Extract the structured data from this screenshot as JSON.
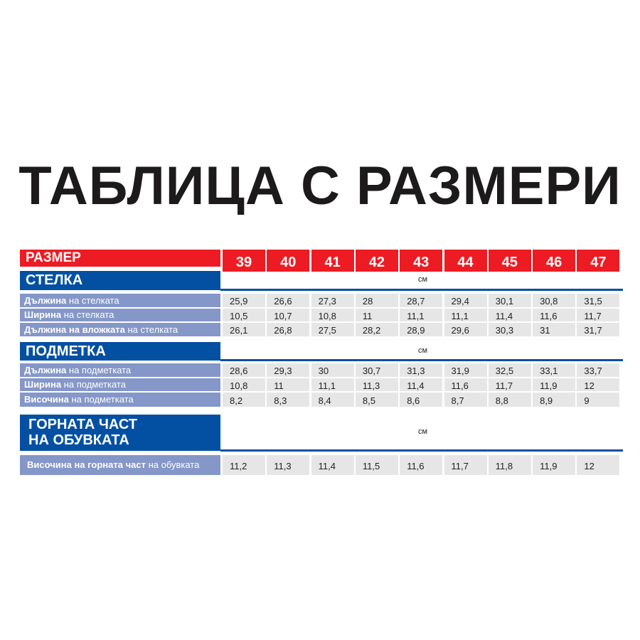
{
  "title": "ТАБЛИЦА С РАЗМЕРИ",
  "size_label": "РАЗМЕР",
  "sizes": [
    "39",
    "40",
    "41",
    "42",
    "43",
    "44",
    "45",
    "46",
    "47"
  ],
  "colors": {
    "red": "#ed1c24",
    "blue": "#0350a3",
    "label_bg": "#8597c8",
    "cell_bg": "#e6e6e6"
  },
  "sections": [
    {
      "title_lines": [
        "СТЕЛКА"
      ],
      "unit": "см",
      "rows": [
        {
          "bold": "Дължина",
          "rest": " на стелката",
          "values": [
            "25,9",
            "26,6",
            "27,3",
            "28",
            "28,7",
            "29,4",
            "30,1",
            "30,8",
            "31,5"
          ]
        },
        {
          "bold": "Ширина",
          "rest": " на стелката",
          "values": [
            "10,5",
            "10,7",
            "10,8",
            "11",
            "11,1",
            "11,1",
            "11,4",
            "11,6",
            "11,7"
          ]
        },
        {
          "bold": "Дължина на вложката",
          "rest": " на стелката",
          "values": [
            "26,1",
            "26,8",
            "27,5",
            "28,2",
            "28,9",
            "29,6",
            "30,3",
            "31",
            "31,7"
          ]
        }
      ]
    },
    {
      "title_lines": [
        "ПОДМЕТКА"
      ],
      "unit": "см",
      "rows": [
        {
          "bold": "Дължина",
          "rest": " на подметката",
          "values": [
            "28,6",
            "29,3",
            "30",
            "30,7",
            "31,3",
            "31,9",
            "32,5",
            "33,1",
            "33,7"
          ]
        },
        {
          "bold": "Ширина",
          "rest": " на подметката",
          "values": [
            "10,8",
            "11",
            "11,1",
            "11,3",
            "11,4",
            "11,6",
            "11,7",
            "11,9",
            "12"
          ]
        },
        {
          "bold": "Височина",
          "rest": " на подметката",
          "values": [
            "8,2",
            "8,3",
            "8,4",
            "8,5",
            "8,6",
            "8,7",
            "8,8",
            "8,9",
            "9"
          ]
        }
      ]
    },
    {
      "title_lines": [
        "ГОРНАТА ЧАСТ",
        "НА ОБУВКАТА"
      ],
      "unit": "см",
      "rows": [
        {
          "bold": "Височина на горната част",
          "rest": " на обувката",
          "values": [
            "11,2",
            "11,3",
            "11,4",
            "11,5",
            "11,6",
            "11,7",
            "11,8",
            "11,9",
            "12"
          ]
        }
      ]
    }
  ]
}
